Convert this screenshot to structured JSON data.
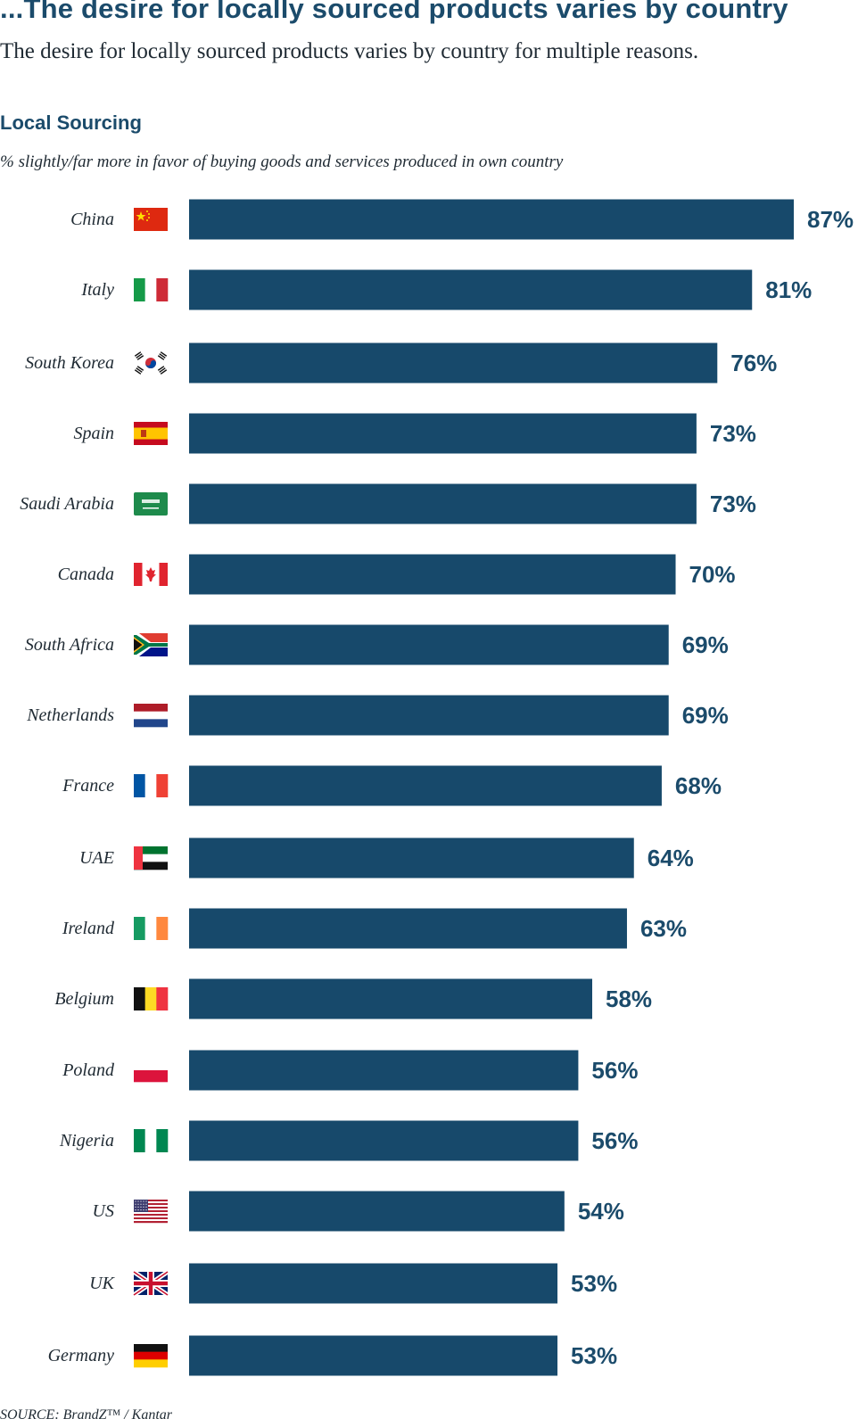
{
  "header": {
    "headline": "...The desire for locally sourced products varies by country",
    "subhead": "The desire for locally sourced products varies by country for multiple reasons."
  },
  "chart_data": {
    "type": "bar",
    "orientation": "horizontal",
    "title": "Local Sourcing",
    "subtitle": "% slightly/far more in favor of buying goods and services produced in own country",
    "categories": [
      "China",
      "Italy",
      "South Korea",
      "Spain",
      "Saudi Arabia",
      "Canada",
      "South Africa",
      "Netherlands",
      "France",
      "UAE",
      "Ireland",
      "Belgium",
      "Poland",
      "Nigeria",
      "US",
      "UK",
      "Germany"
    ],
    "values": [
      87,
      81,
      76,
      73,
      73,
      70,
      69,
      69,
      68,
      64,
      63,
      58,
      56,
      56,
      54,
      53,
      53
    ],
    "value_labels": [
      "87%",
      "81%",
      "76%",
      "73%",
      "73%",
      "70%",
      "69%",
      "69%",
      "68%",
      "64%",
      "63%",
      "58%",
      "56%",
      "56%",
      "54%",
      "53%",
      "53%"
    ],
    "flags": [
      "china-flag-icon",
      "italy-flag-icon",
      "south-korea-flag-icon",
      "spain-flag-icon",
      "saudi-arabia-flag-icon",
      "canada-flag-icon",
      "south-africa-flag-icon",
      "netherlands-flag-icon",
      "france-flag-icon",
      "uae-flag-icon",
      "ireland-flag-icon",
      "belgium-flag-icon",
      "poland-flag-icon",
      "nigeria-flag-icon",
      "us-flag-icon",
      "uk-flag-icon",
      "germany-flag-icon"
    ],
    "xlim": [
      0,
      87
    ],
    "grid": false,
    "legend": "none",
    "colors": {
      "bar": "#17496b",
      "label": "#1b4b6b"
    }
  },
  "footer": {
    "source": "SOURCE: BrandZ™ / Kantar"
  }
}
